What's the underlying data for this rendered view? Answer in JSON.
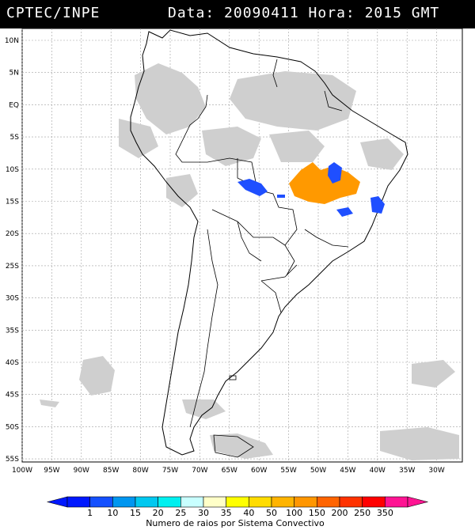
{
  "header": {
    "agency": "CPTEC/INPE",
    "datetime": "Data: 20090411 Hora: 2015 GMT"
  },
  "axes": {
    "lat_labels": [
      "10N",
      "5N",
      "EQ",
      "5S",
      "10S",
      "15S",
      "20S",
      "25S",
      "30S",
      "35S",
      "40S",
      "45S",
      "50S",
      "55S"
    ],
    "lon_labels": [
      "100W",
      "95W",
      "90W",
      "85W",
      "80W",
      "75W",
      "70W",
      "65W",
      "60W",
      "55W",
      "50W",
      "45W",
      "40W",
      "35W",
      "30W"
    ]
  },
  "legend": {
    "values": [
      "1",
      "10",
      "15",
      "20",
      "25",
      "30",
      "35",
      "40",
      "50",
      "100",
      "150",
      "200",
      "250",
      "350"
    ],
    "colors": [
      "#0018ff",
      "#1450ff",
      "#0096f0",
      "#00c8f0",
      "#00f0f0",
      "#c8ffff",
      "#ffffc8",
      "#ffff00",
      "#ffdc00",
      "#ffb400",
      "#ff9600",
      "#ff6400",
      "#ff3200",
      "#ff0000",
      "#ff1493"
    ],
    "caption": "Numero de raios por Sistema Convectivo"
  },
  "colors": {
    "cloud": "#c8c8c8",
    "land_outline": "#000000",
    "grid": "#a0a0a0",
    "orange_system": "#ff9900",
    "blue_system": "#1f4fff"
  }
}
